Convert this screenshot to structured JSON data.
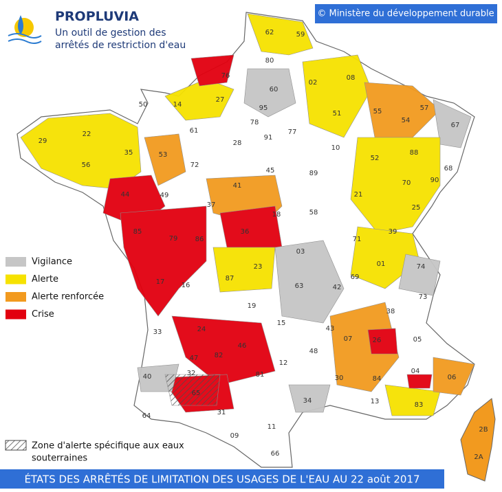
{
  "header": {
    "title": "PROPLUVIA",
    "subtitle": [
      "Un outil de gestion des",
      "arrêtés de restriction d'eau"
    ]
  },
  "copyright": "© Ministère du développement durable",
  "legend": {
    "items": [
      {
        "label": "Vigilance",
        "color": "#c6c6c6"
      },
      {
        "label": "Alerte",
        "color": "#f6e200"
      },
      {
        "label": "Alerte renforcée",
        "color": "#f29a1f"
      },
      {
        "label": "Crise",
        "color": "#e2000f"
      }
    ],
    "note": [
      "Zone d'alerte spécifique aux eaux",
      "souterraines"
    ]
  },
  "map": {
    "department_labels": [
      "62",
      "59",
      "80",
      "76",
      "60",
      "02",
      "08",
      "50",
      "14",
      "27",
      "95",
      "51",
      "55",
      "57",
      "54",
      "67",
      "61",
      "78",
      "77",
      "91",
      "29",
      "22",
      "35",
      "53",
      "72",
      "28",
      "10",
      "52",
      "88",
      "68",
      "56",
      "45",
      "89",
      "70",
      "90",
      "44",
      "49",
      "37",
      "41",
      "21",
      "25",
      "85",
      "79",
      "86",
      "36",
      "18",
      "58",
      "39",
      "71",
      "03",
      "01",
      "74",
      "17",
      "87",
      "23",
      "63",
      "42",
      "69",
      "73",
      "16",
      "19",
      "38",
      "15",
      "43",
      "24",
      "33",
      "07",
      "26",
      "05",
      "46",
      "48",
      "12",
      "47",
      "82",
      "04",
      "06",
      "40",
      "30",
      "84",
      "32",
      "81",
      "34",
      "13",
      "83",
      "65",
      "64",
      "31",
      "09",
      "11",
      "66",
      "2B",
      "2A"
    ]
  },
  "footer": "ÉTATS DES ARRÊTÉS DE LIMITATION DES USAGES DE L'EAU AU 22 août 2017"
}
